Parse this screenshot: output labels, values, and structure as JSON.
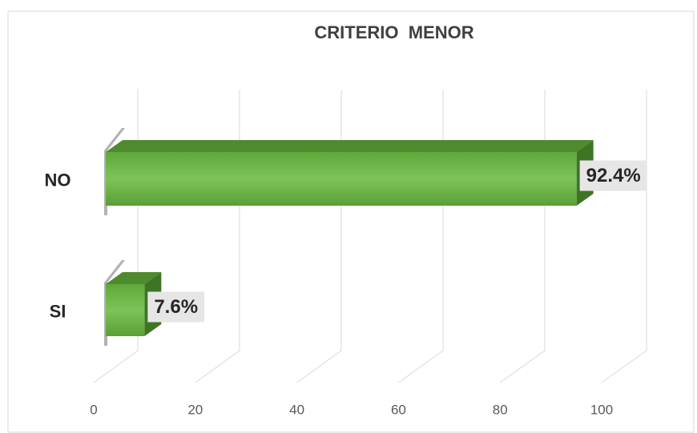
{
  "chart_data": {
    "type": "bar3d_horizontal",
    "title": "CRITERIO  MENOR",
    "categories": [
      "NO",
      "SI"
    ],
    "values": [
      92.4,
      7.6
    ],
    "value_labels": [
      "92.4%",
      "7.6%"
    ],
    "color": "#70b84a",
    "xlim": [
      0,
      100
    ],
    "xticks": [
      0,
      20,
      40,
      60,
      80,
      100
    ],
    "grid": true
  }
}
